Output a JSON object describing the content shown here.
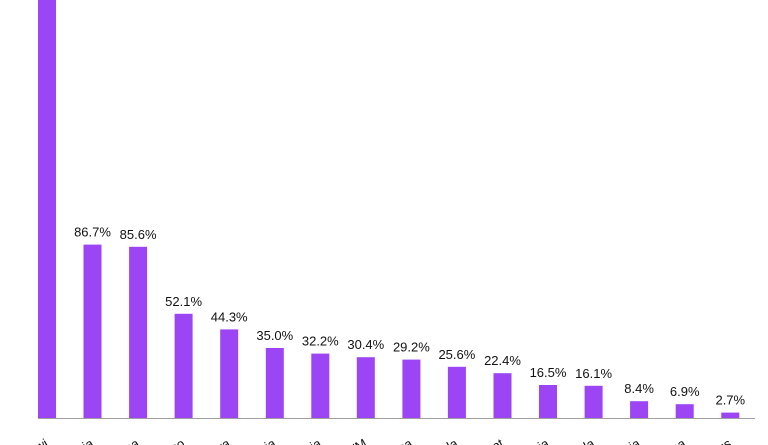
{
  "chart_data": {
    "type": "bar",
    "categories": [
      "awi",
      "bia",
      "na",
      "co",
      "va",
      "ria",
      "sia",
      "VM",
      "ica",
      "da",
      "ypt",
      "nia",
      "da",
      "bia",
      "na",
      "ius"
    ],
    "values": [
      null,
      86.7,
      85.6,
      52.1,
      44.3,
      35.0,
      32.2,
      30.4,
      29.2,
      25.6,
      22.4,
      16.5,
      16.1,
      8.4,
      6.9,
      2.7
    ],
    "value_labels": [
      "",
      "86.7%",
      "85.6%",
      "52.1%",
      "44.3%",
      "35.0%",
      "32.2%",
      "30.4%",
      "29.2%",
      "25.6%",
      "22.4%",
      "16.5%",
      "16.1%",
      "8.4%",
      "6.9%",
      "2.7%"
    ],
    "title": "",
    "xlabel": "",
    "ylabel": "",
    "grid": false,
    "legend": "none",
    "colors": {
      "bar": "#9B45F5",
      "axis": "#9E9E9E",
      "text": "#111111"
    }
  }
}
